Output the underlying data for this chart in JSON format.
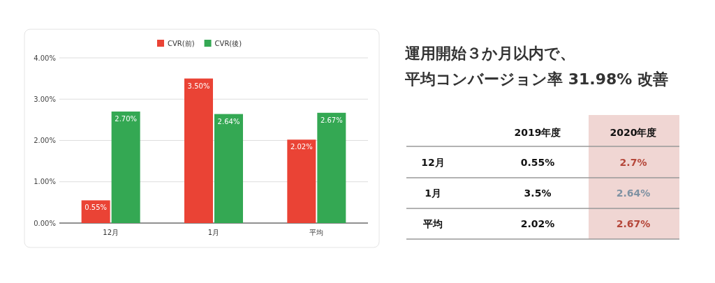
{
  "chart_data": [
    {
      "type": "bar",
      "categories": [
        "12月",
        "1月",
        "平均"
      ],
      "series": [
        {
          "name": "CVR(前)",
          "color": "#ea4335",
          "values": [
            0.55,
            3.5,
            2.02
          ],
          "value_labels": [
            "0.55%",
            "3.50%",
            "2.02%"
          ]
        },
        {
          "name": "CVR(後)",
          "color": "#34a853",
          "values": [
            2.7,
            2.64,
            2.67
          ],
          "value_labels": [
            "2.70%",
            "2.64%",
            "2.67%"
          ]
        }
      ],
      "ylim": [
        0,
        4
      ],
      "yticks": [
        {
          "value": 0,
          "label": "0.00%"
        },
        {
          "value": 1,
          "label": "1.00%"
        },
        {
          "value": 2,
          "label": "2.00%"
        },
        {
          "value": 3,
          "label": "3.00%"
        },
        {
          "value": 4,
          "label": "4.00%"
        }
      ],
      "grid": "y",
      "legend": "top"
    },
    {
      "type": "other",
      "title": "運用開始３か月以内で、",
      "subtitle": "平均コンバージョン率 31.98% 改善",
      "categories": [
        "2019年度",
        "2020年度"
      ],
      "y_categories": [
        "12月",
        "1月",
        "平均"
      ],
      "cell_labels": [
        [
          "0.55%",
          "2.7%"
        ],
        [
          "3.5%",
          "2.64%"
        ],
        [
          "2.02%",
          "2.67%"
        ]
      ]
    }
  ]
}
